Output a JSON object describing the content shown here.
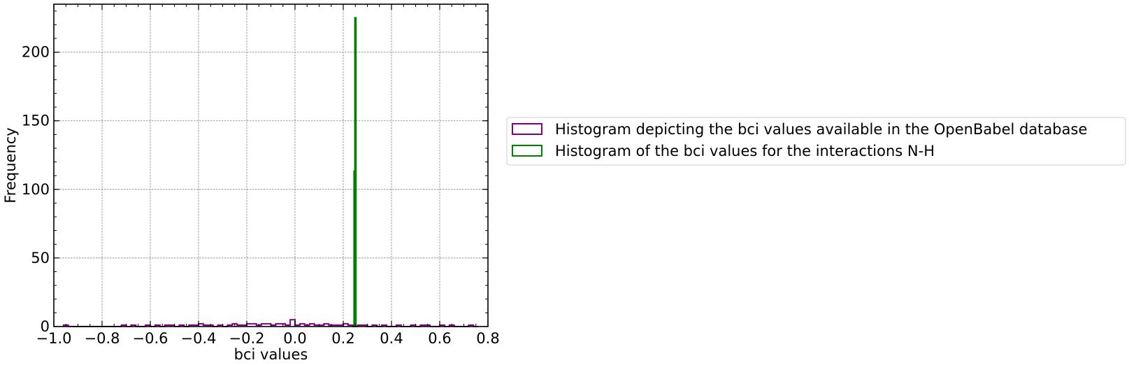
{
  "chart_data": {
    "type": "histogram",
    "title": "",
    "xlabel": "bci values",
    "ylabel": "Frequency",
    "xlim": [
      -1.0,
      0.8
    ],
    "ylim": [
      0,
      235
    ],
    "grid": true,
    "legend_position": "right, outside plot",
    "x_ticks": [
      {
        "value": -1.0,
        "label": "−1.0"
      },
      {
        "value": -0.8,
        "label": "−0.8"
      },
      {
        "value": -0.6,
        "label": "−0.6"
      },
      {
        "value": -0.4,
        "label": "−0.4"
      },
      {
        "value": -0.2,
        "label": "−0.2"
      },
      {
        "value": 0.0,
        "label": "0.0"
      },
      {
        "value": 0.2,
        "label": "0.2"
      },
      {
        "value": 0.4,
        "label": "0.4"
      },
      {
        "value": 0.6,
        "label": "0.6"
      },
      {
        "value": 0.8,
        "label": "0.8"
      }
    ],
    "y_ticks": [
      {
        "value": 0,
        "label": "0"
      },
      {
        "value": 50,
        "label": "50"
      },
      {
        "value": 100,
        "label": "100"
      },
      {
        "value": 150,
        "label": "150"
      },
      {
        "value": 200,
        "label": "200"
      }
    ],
    "series": [
      {
        "name": "Histogram depicting the bci values available in the OpenBabel database",
        "style": "step",
        "color": "#800080",
        "bin_width": 0.02,
        "bins": [
          [
            -0.96,
            -0.94,
            1
          ],
          [
            -0.94,
            -0.92,
            0
          ],
          [
            -0.92,
            -0.72,
            0
          ],
          [
            -0.72,
            -0.7,
            1
          ],
          [
            -0.7,
            -0.68,
            0
          ],
          [
            -0.68,
            -0.66,
            1
          ],
          [
            -0.66,
            -0.64,
            0
          ],
          [
            -0.64,
            -0.62,
            0
          ],
          [
            -0.62,
            -0.6,
            1
          ],
          [
            -0.6,
            -0.58,
            0
          ],
          [
            -0.58,
            -0.56,
            1
          ],
          [
            -0.56,
            -0.54,
            0
          ],
          [
            -0.54,
            -0.5,
            1
          ],
          [
            -0.5,
            -0.48,
            0
          ],
          [
            -0.48,
            -0.46,
            1
          ],
          [
            -0.46,
            -0.44,
            0
          ],
          [
            -0.44,
            -0.42,
            1
          ],
          [
            -0.42,
            -0.4,
            1
          ],
          [
            -0.4,
            -0.38,
            2
          ],
          [
            -0.38,
            -0.34,
            1
          ],
          [
            -0.34,
            -0.32,
            0
          ],
          [
            -0.32,
            -0.3,
            1
          ],
          [
            -0.3,
            -0.28,
            0
          ],
          [
            -0.28,
            -0.26,
            1
          ],
          [
            -0.26,
            -0.24,
            2
          ],
          [
            -0.24,
            -0.22,
            1
          ],
          [
            -0.22,
            -0.2,
            1
          ],
          [
            -0.2,
            -0.16,
            2
          ],
          [
            -0.16,
            -0.14,
            1
          ],
          [
            -0.14,
            -0.1,
            2
          ],
          [
            -0.1,
            -0.08,
            1
          ],
          [
            -0.08,
            -0.04,
            2
          ],
          [
            -0.04,
            -0.02,
            1
          ],
          [
            -0.02,
            0.0,
            5
          ],
          [
            0.0,
            0.02,
            1
          ],
          [
            0.02,
            0.04,
            2
          ],
          [
            0.04,
            0.06,
            1
          ],
          [
            0.06,
            0.08,
            2
          ],
          [
            0.08,
            0.12,
            1
          ],
          [
            0.12,
            0.14,
            2
          ],
          [
            0.14,
            0.16,
            1
          ],
          [
            0.16,
            0.18,
            1
          ],
          [
            0.18,
            0.2,
            1
          ],
          [
            0.2,
            0.22,
            2
          ],
          [
            0.22,
            0.24,
            1
          ],
          [
            0.24,
            0.26,
            0
          ],
          [
            0.26,
            0.28,
            1
          ],
          [
            0.28,
            0.3,
            1
          ],
          [
            0.3,
            0.32,
            0
          ],
          [
            0.32,
            0.34,
            1
          ],
          [
            0.34,
            0.36,
            0
          ],
          [
            0.36,
            0.38,
            1
          ],
          [
            0.38,
            0.42,
            0
          ],
          [
            0.42,
            0.44,
            1
          ],
          [
            0.44,
            0.48,
            0
          ],
          [
            0.48,
            0.5,
            1
          ],
          [
            0.5,
            0.52,
            0
          ],
          [
            0.52,
            0.56,
            1
          ],
          [
            0.56,
            0.6,
            0
          ],
          [
            0.6,
            0.62,
            1
          ],
          [
            0.62,
            0.64,
            0
          ],
          [
            0.64,
            0.66,
            1
          ],
          [
            0.66,
            0.72,
            0
          ],
          [
            0.72,
            0.74,
            1
          ],
          [
            0.74,
            0.76,
            0
          ]
        ]
      },
      {
        "name": "Histogram of the bci values for the interactions N-H",
        "style": "step",
        "color": "#008000",
        "bins": [
          [
            0.2455,
            0.2485,
            113
          ],
          [
            0.249,
            0.252,
            225
          ]
        ]
      }
    ]
  }
}
